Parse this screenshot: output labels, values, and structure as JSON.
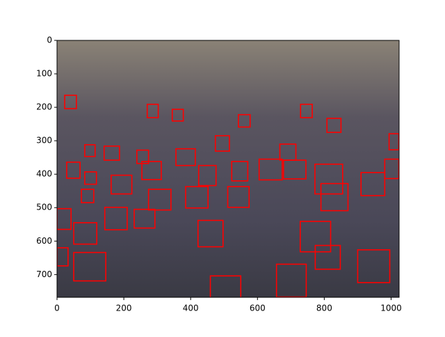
{
  "chart_data": {
    "type": "image",
    "xlim": [
      0,
      1024
    ],
    "ylim": [
      768,
      0
    ],
    "xticks": [
      0,
      200,
      400,
      600,
      800,
      1000
    ],
    "yticks": [
      0,
      100,
      200,
      300,
      400,
      500,
      600,
      700
    ],
    "box_color": "#ff0000",
    "boxes": {
      "x": [
        50,
        459,
        657,
        900,
        728,
        773,
        422,
        50,
        143,
        231,
        0,
        0,
        385,
        511,
        274,
        790,
        910,
        772,
        162,
        254,
        424,
        523,
        605,
        678,
        981,
        29,
        83,
        73,
        356,
        667,
        474,
        141,
        83,
        239,
        808,
        994,
        543,
        23,
        270,
        345,
        729
      ],
      "y": [
        634,
        704,
        669,
        626,
        541,
        613,
        538,
        545,
        499,
        505,
        503,
        620,
        437,
        437,
        445,
        428,
        395,
        370,
        403,
        362,
        374,
        362,
        355,
        358,
        355,
        364,
        393,
        445,
        324,
        310,
        285,
        316,
        312,
        328,
        233,
        279,
        222,
        164,
        191,
        206,
        191
      ],
      "width": [
        96,
        91,
        89,
        96,
        91,
        75,
        75,
        69,
        67,
        62,
        42,
        33,
        67,
        64,
        67,
        81,
        71,
        83,
        62,
        58,
        52,
        48,
        69,
        67,
        42,
        40,
        35,
        37,
        58,
        48,
        42,
        46,
        31,
        35,
        42,
        29,
        35,
        35,
        33,
        33,
        35
      ],
      "height": [
        85,
        66,
        98,
        98,
        91,
        71,
        79,
        64,
        67,
        56,
        62,
        54,
        64,
        62,
        62,
        81,
        69,
        89,
        56,
        54,
        60,
        58,
        62,
        56,
        58,
        48,
        37,
        40,
        50,
        48,
        46,
        42,
        35,
        40,
        42,
        48,
        37,
        40,
        40,
        35,
        40
      ]
    }
  }
}
